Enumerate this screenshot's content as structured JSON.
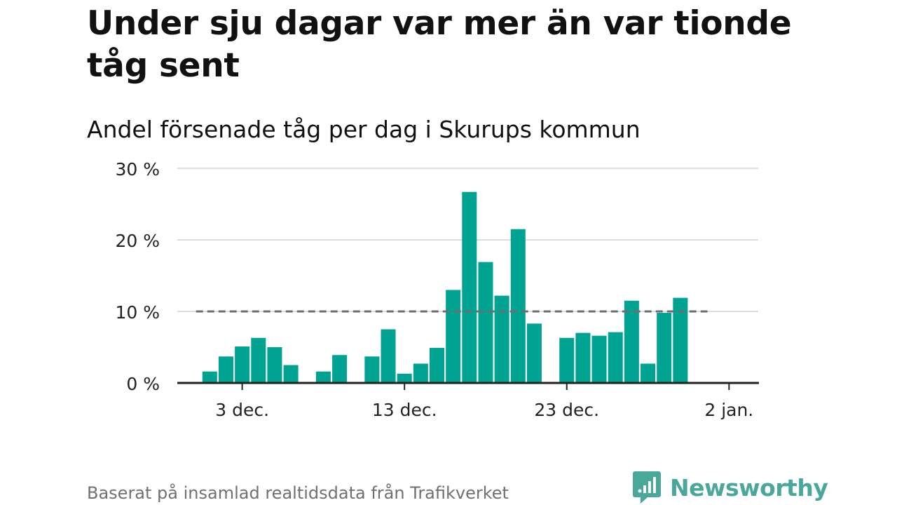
{
  "header": {
    "title": "Under sju dagar var mer än var tionde tåg sent",
    "subtitle": "Andel försenade tåg per dag i Skurups kommun"
  },
  "footer": {
    "source": "Baserat på insamlad realtidsdata från Trafikverket",
    "brand": "Newsworthy"
  },
  "colors": {
    "bar": "#00a391",
    "reference_line": "#6e6e6e",
    "grid": "#dddddd",
    "axis": "#222222",
    "brand": "#4aa89a"
  },
  "chart_data": {
    "type": "bar",
    "x_ticks": [
      {
        "day": 3,
        "label": "3 dec."
      },
      {
        "day": 13,
        "label": "13 dec."
      },
      {
        "day": 23,
        "label": "23 dec."
      },
      {
        "day": 33,
        "label": "2 jan."
      }
    ],
    "y_ticks": [
      {
        "value": 0,
        "label": "0 %"
      },
      {
        "value": 10,
        "label": "10 %"
      },
      {
        "value": 20,
        "label": "20 %"
      },
      {
        "value": 30,
        "label": "30 %"
      }
    ],
    "ylim": [
      0,
      30
    ],
    "xlim_days": [
      -1,
      34.8
    ],
    "reference_line": {
      "value": 10,
      "from_day": 0.5,
      "to_day": 31.5
    },
    "bars": [
      {
        "day": 1,
        "value": 1.6
      },
      {
        "day": 2,
        "value": 3.7
      },
      {
        "day": 3,
        "value": 5.1
      },
      {
        "day": 4,
        "value": 6.3
      },
      {
        "day": 5,
        "value": 5.0
      },
      {
        "day": 6,
        "value": 2.5
      },
      {
        "day": 8,
        "value": 1.6
      },
      {
        "day": 9,
        "value": 3.9
      },
      {
        "day": 11,
        "value": 3.7
      },
      {
        "day": 12,
        "value": 7.5
      },
      {
        "day": 13,
        "value": 1.3
      },
      {
        "day": 14,
        "value": 2.7
      },
      {
        "day": 15,
        "value": 4.9
      },
      {
        "day": 16,
        "value": 13.0
      },
      {
        "day": 17,
        "value": 26.7
      },
      {
        "day": 18,
        "value": 16.9
      },
      {
        "day": 19,
        "value": 12.2
      },
      {
        "day": 20,
        "value": 21.5
      },
      {
        "day": 21,
        "value": 8.3
      },
      {
        "day": 23,
        "value": 6.3
      },
      {
        "day": 24,
        "value": 7.0
      },
      {
        "day": 25,
        "value": 6.6
      },
      {
        "day": 26,
        "value": 7.1
      },
      {
        "day": 27,
        "value": 11.5
      },
      {
        "day": 28,
        "value": 2.7
      },
      {
        "day": 29,
        "value": 9.8
      },
      {
        "day": 30,
        "value": 11.9
      }
    ]
  }
}
